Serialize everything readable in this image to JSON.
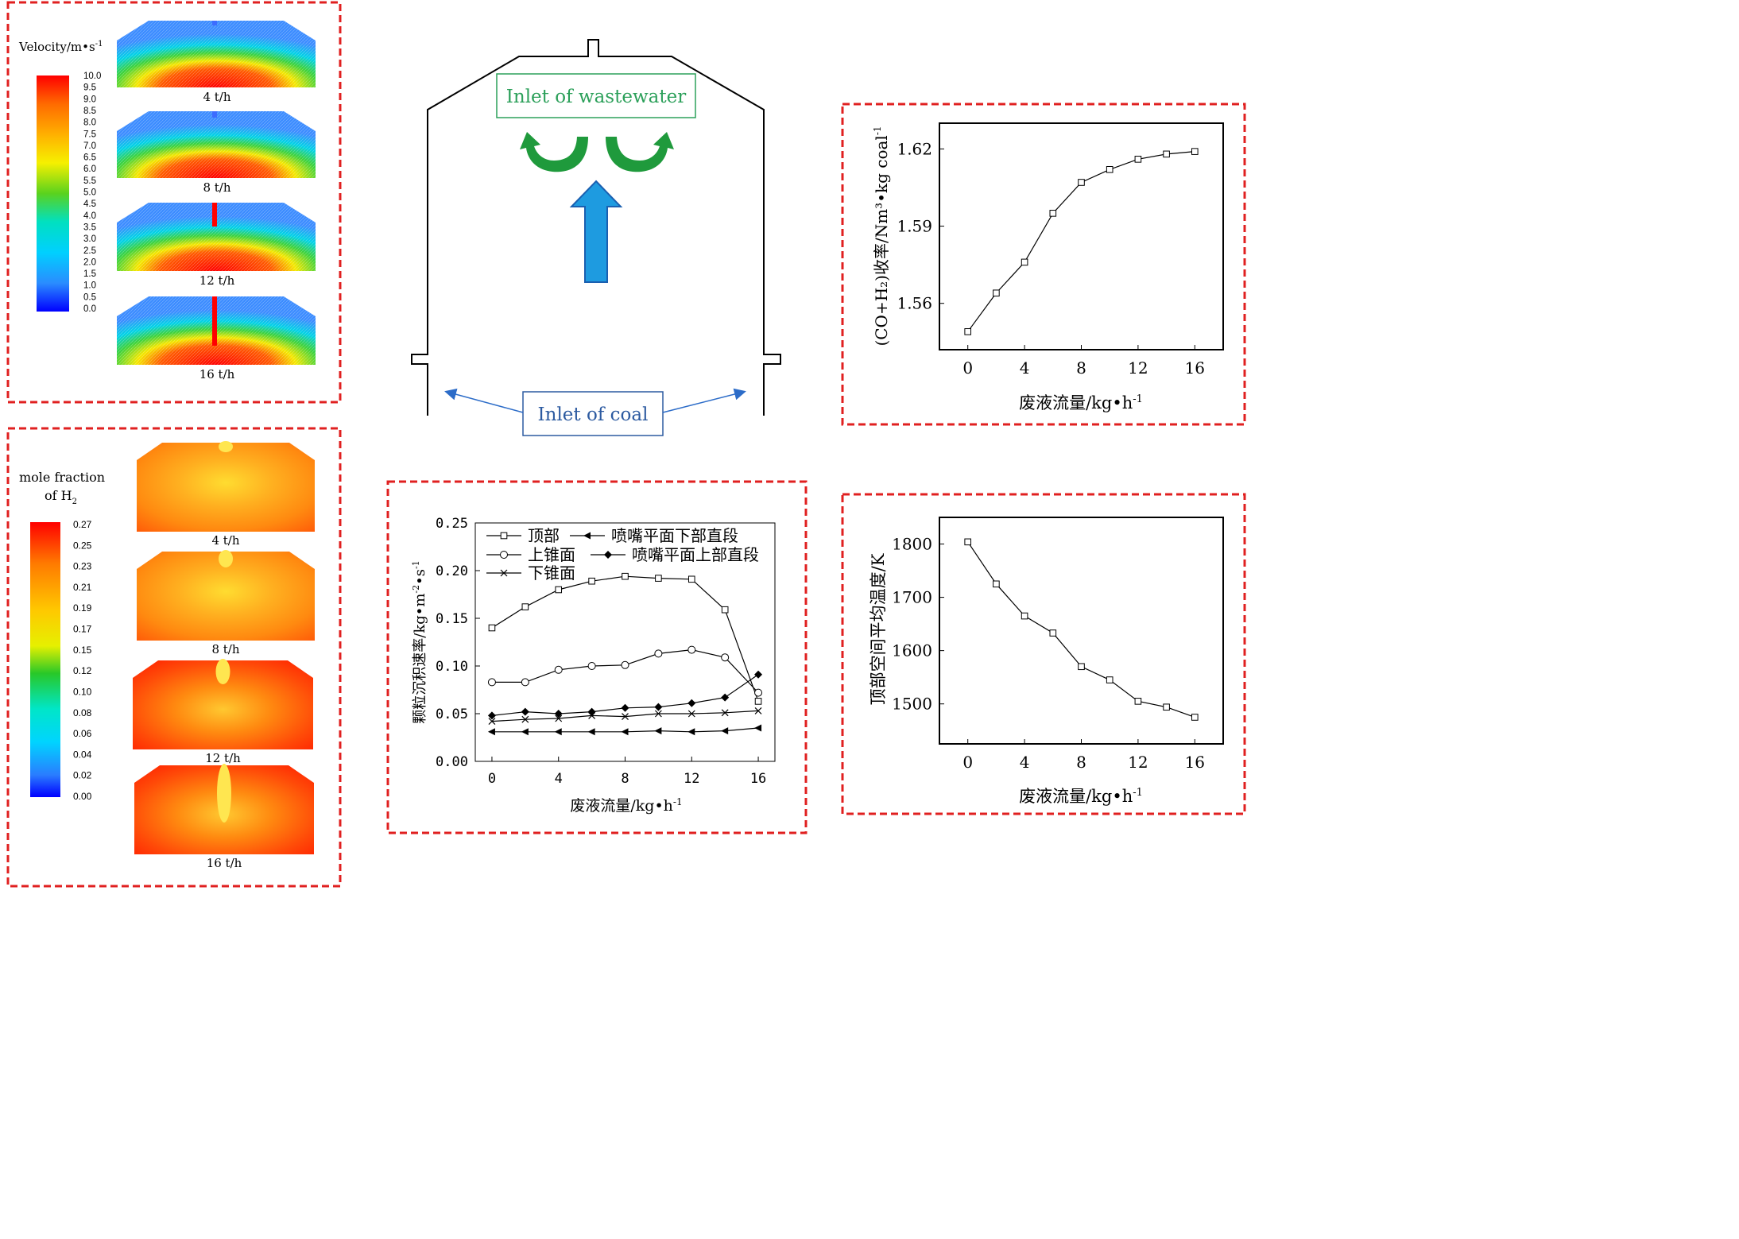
{
  "velocity_panel": {
    "title": "Velocity/m•s",
    "title_sup": "-1",
    "scale_ticks": [
      "10.0",
      "9.5",
      "9.0",
      "8.5",
      "8.0",
      "7.5",
      "7.0",
      "6.5",
      "6.0",
      "5.5",
      "5.0",
      "4.5",
      "4.0",
      "3.5",
      "3.0",
      "2.5",
      "2.0",
      "1.5",
      "1.0",
      "0.5",
      "0.0"
    ],
    "scale_min": 0,
    "scale_max": 10,
    "cases": [
      "4 t/h",
      "8 t/h",
      "12 t/h",
      "16 t/h"
    ]
  },
  "h2_panel": {
    "title_line1": "mole fraction",
    "title_line2": "of H",
    "title_sub": "2",
    "scale_ticks": [
      "0.27",
      "0.25",
      "0.23",
      "0.21",
      "0.19",
      "0.17",
      "0.15",
      "0.12",
      "0.10",
      "0.08",
      "0.06",
      "0.04",
      "0.02",
      "0.00"
    ],
    "scale_min": 0,
    "scale_max": 0.27,
    "cases": [
      "4 t/h",
      "8 t/h",
      "12 t/h",
      "16 t/h"
    ]
  },
  "schematic": {
    "wastewater_label": "Inlet of wastewater",
    "coal_label": "Inlet of coal",
    "colors": {
      "green": "#2ca02c",
      "blue": "#1c9bdc",
      "label_green": "#2ca05a",
      "label_blue": "#2c5aa0"
    }
  },
  "colors": {
    "frame": "#e02020",
    "line": "#000000"
  },
  "chart_data": [
    {
      "id": "deposition",
      "type": "line",
      "xlabel": "废液流量/kg•h",
      "xlabel_sup": "-1",
      "ylabel": "颗粒沉积速率/kg•m",
      "ylabel_sup1": "-2",
      "ylabel_mid": "•s",
      "ylabel_sup2": "-1",
      "xlim": [
        -1,
        17
      ],
      "ylim": [
        0,
        0.25
      ],
      "xticks": [
        "0",
        "4",
        "8",
        "12",
        "16"
      ],
      "yticks": [
        "0.00",
        "0.05",
        "0.10",
        "0.15",
        "0.20",
        "0.25"
      ],
      "legend_position": "top-left",
      "series": [
        {
          "name": "顶部",
          "marker": "square",
          "x": [
            0,
            2,
            4,
            6,
            8,
            10,
            12,
            14,
            16
          ],
          "y": [
            0.14,
            0.162,
            0.18,
            0.189,
            0.194,
            0.192,
            0.191,
            0.159,
            0.063
          ]
        },
        {
          "name": "上锥面",
          "marker": "circle",
          "x": [
            0,
            2,
            4,
            6,
            8,
            10,
            12,
            14,
            16
          ],
          "y": [
            0.083,
            0.083,
            0.096,
            0.1,
            0.101,
            0.113,
            0.117,
            0.109,
            0.072
          ]
        },
        {
          "name": "下锥面",
          "marker": "cross",
          "x": [
            0,
            2,
            4,
            6,
            8,
            10,
            12,
            14,
            16
          ],
          "y": [
            0.042,
            0.044,
            0.045,
            0.048,
            0.047,
            0.05,
            0.05,
            0.051,
            0.053
          ]
        },
        {
          "name": "喷嘴平面下部直段",
          "marker": "left-triangle",
          "x": [
            0,
            2,
            4,
            6,
            8,
            10,
            12,
            14,
            16
          ],
          "y": [
            0.031,
            0.031,
            0.031,
            0.031,
            0.031,
            0.032,
            0.031,
            0.032,
            0.035
          ]
        },
        {
          "name": "喷嘴平面上部直段",
          "marker": "diamond",
          "x": [
            0,
            2,
            4,
            6,
            8,
            10,
            12,
            14,
            16
          ],
          "y": [
            0.048,
            0.052,
            0.05,
            0.052,
            0.056,
            0.057,
            0.061,
            0.067,
            0.091
          ]
        }
      ]
    },
    {
      "id": "syngas-yield",
      "type": "line",
      "xlabel": "废液流量/kg•h",
      "xlabel_sup": "-1",
      "ylabel": "(CO+H₂)收率/Nm³•kg coal",
      "ylabel_sup": "-1",
      "xlim": [
        -2,
        18
      ],
      "ylim": [
        1.542,
        1.63
      ],
      "xticks": [
        "0",
        "4",
        "8",
        "12",
        "16"
      ],
      "yticks": [
        "1.56",
        "1.59",
        "1.62"
      ],
      "series": [
        {
          "marker": "square",
          "x": [
            0,
            2,
            4,
            6,
            8,
            10,
            12,
            14,
            16
          ],
          "y": [
            1.549,
            1.564,
            1.576,
            1.595,
            1.607,
            1.612,
            1.616,
            1.618,
            1.619
          ]
        }
      ]
    },
    {
      "id": "top-temperature",
      "type": "line",
      "xlabel": "废液流量/kg•h",
      "xlabel_sup": "-1",
      "ylabel": "顶部空间平均温度/K",
      "xlim": [
        -2,
        18
      ],
      "ylim": [
        1425,
        1850
      ],
      "xticks": [
        "0",
        "4",
        "8",
        "12",
        "16"
      ],
      "yticks": [
        "1500",
        "1600",
        "1700",
        "1800"
      ],
      "series": [
        {
          "marker": "square",
          "x": [
            0,
            2,
            4,
            6,
            8,
            10,
            12,
            14,
            16
          ],
          "y": [
            1804,
            1725,
            1665,
            1633,
            1570,
            1545,
            1505,
            1494,
            1475
          ]
        }
      ]
    }
  ]
}
